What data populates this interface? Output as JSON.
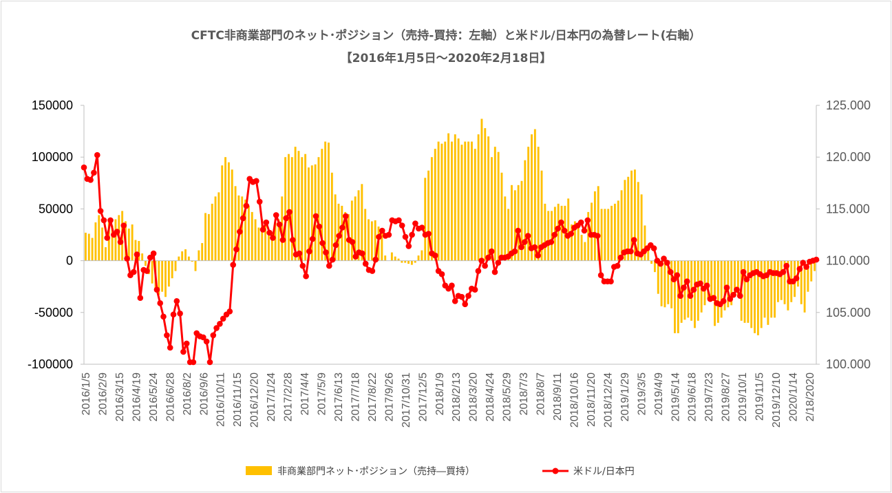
{
  "chart_data": {
    "type": "bar+line",
    "title": "CFTC非商業部門のネット･ポジション（売持-買持：左軸）と米ドル/日本円の為替レート(右軸）",
    "subtitle": "【2016年1月5日～2020年2月18日】",
    "y_left": {
      "min": -100000,
      "max": 150000,
      "ticks": [
        "150000",
        "100000",
        "50000",
        "0",
        "-50000",
        "-100000"
      ]
    },
    "y_right": {
      "min": 100.0,
      "max": 125.0,
      "ticks": [
        "125.000",
        "120.000",
        "115.000",
        "110.000",
        "105.000",
        "100.000"
      ]
    },
    "x_tick_labels": [
      "2016/1/5",
      "2016/2/9",
      "2016/3/15",
      "2016/4/19",
      "2016/5/24",
      "2016/6/28",
      "2016/8/2",
      "2016/9/6",
      "2016/10/11",
      "2016/11/15",
      "2016/12/20",
      "2017/1/24",
      "2017/2/28",
      "2017/4/4",
      "2017/5/9",
      "2017/6/13",
      "2017/7/18",
      "2017/8/22",
      "2017/9/26",
      "2017/10/31",
      "2017/12/5",
      "2018/1/9",
      "2018/2/13",
      "2018/3/20",
      "2018/4/24",
      "2018/5/29",
      "2018/7/3",
      "2018/8/7",
      "2018/9/11",
      "2018/10/16",
      "2018/11/20",
      "2018/12/24",
      "2019/1/29",
      "2019/3/5",
      "2019/4/9",
      "2019/5/14",
      "2019/6/18",
      "2019/7/23",
      "2019/8/27",
      "2019/10/1",
      "2019/11/5",
      "2019/12/10",
      "2020/1/14",
      "2/18/2020"
    ],
    "series": [
      {
        "name": "非商業部門ネット･ポジション（売持―買持）",
        "kind": "bar",
        "axis": "left",
        "color": "#FFC000",
        "values": [
          27000,
          26000,
          22000,
          37000,
          44000,
          32000,
          13000,
          37000,
          34000,
          40000,
          44000,
          48000,
          38000,
          31000,
          35000,
          20000,
          19000,
          7000,
          -5000,
          -13000,
          -22000,
          -27000,
          -33000,
          -30000,
          -35000,
          -25000,
          -17000,
          -10000,
          4000,
          9000,
          11000,
          4000,
          -1000,
          -10000,
          10000,
          17000,
          46000,
          45000,
          55000,
          62000,
          66000,
          92000,
          100000,
          95000,
          88000,
          72000,
          63000,
          62000,
          59000,
          53000,
          47000,
          40000,
          32000,
          40000,
          38000,
          30000,
          27000,
          37000,
          40000,
          62000,
          100000,
          103000,
          100000,
          110000,
          106000,
          100000,
          103000,
          90000,
          92000,
          93000,
          100000,
          108000,
          115000,
          114000,
          85000,
          64000,
          55000,
          53000,
          47000,
          45000,
          58000,
          62000,
          68000,
          74000,
          50000,
          40000,
          38000,
          39000,
          33000,
          30000,
          5000,
          0,
          8000,
          4000,
          2000,
          -2000,
          -2000,
          -3000,
          -4000,
          -2000,
          5000,
          10000,
          80000,
          87000,
          100000,
          108000,
          115000,
          113000,
          115000,
          123000,
          115000,
          122000,
          118000,
          112000,
          115000,
          115000,
          115000,
          108000,
          122000,
          137000,
          128000,
          120000,
          100000,
          110000,
          105000,
          85000,
          62000,
          50000,
          73000,
          68000,
          73000,
          77000,
          97000,
          110000,
          122000,
          127000,
          110000,
          87000,
          55000,
          48000,
          48000,
          52000,
          55000,
          53000,
          53000,
          60000,
          35000,
          38000,
          32000,
          25000,
          18000,
          47000,
          56000,
          67000,
          72000,
          50000,
          50000,
          50000,
          53000,
          55000,
          58000,
          68000,
          78000,
          81000,
          87000,
          88000,
          76000,
          64000,
          34000,
          10000,
          -3000,
          -11000,
          -32000,
          -44000,
          -45000,
          -42000,
          -46000,
          -70000,
          -70000,
          -60000,
          -57000,
          -55000,
          -58000,
          -65000,
          -58000,
          -50000,
          -43000,
          -37000,
          -38000,
          -63000,
          -60000,
          -55000,
          -48000,
          -45000,
          -43000,
          -30000,
          -35000,
          -58000,
          -60000,
          -60000,
          -65000,
          -70000,
          -72000,
          -65000,
          -55000,
          -62000,
          -55000,
          -55000,
          -40000,
          -38000,
          -42000,
          -48000,
          -40000,
          -35000,
          -25000,
          -42000,
          -50000,
          -30000,
          -20000,
          -10000
        ]
      },
      {
        "name": "米ドル/日本円",
        "kind": "line",
        "axis": "right",
        "color": "#FF0000",
        "values": [
          119.0,
          117.9,
          117.8,
          118.5,
          120.2,
          114.8,
          113.9,
          112.2,
          113.9,
          112.5,
          112.8,
          111.8,
          113.4,
          110.2,
          108.6,
          108.9,
          110.6,
          106.4,
          109.1,
          109.0,
          110.3,
          110.7,
          107.2,
          105.9,
          104.6,
          102.8,
          101.6,
          104.8,
          106.1,
          104.9,
          101.2,
          102.0,
          100.2,
          100.2,
          103.0,
          102.7,
          102.6,
          102.2,
          100.2,
          102.8,
          103.5,
          103.9,
          104.4,
          104.8,
          105.1,
          109.6,
          111.1,
          112.8,
          114.1,
          115.3,
          117.9,
          117.6,
          117.7,
          115.7,
          113.0,
          113.7,
          112.7,
          112.2,
          114.4,
          113.5,
          112.0,
          114.1,
          114.7,
          112.0,
          110.6,
          110.7,
          109.5,
          108.5,
          110.9,
          112.1,
          114.3,
          113.3,
          111.7,
          110.8,
          109.5,
          110.1,
          111.5,
          112.4,
          113.2,
          114.3,
          112.0,
          111.8,
          110.4,
          110.8,
          110.7,
          109.7,
          109.1,
          109.0,
          110.1,
          112.3,
          112.9,
          112.4,
          112.5,
          113.9,
          113.8,
          113.9,
          113.4,
          112.3,
          111.4,
          112.5,
          113.6,
          113.1,
          113.2,
          112.5,
          112.6,
          110.7,
          110.5,
          109.0,
          108.7,
          107.6,
          107.3,
          107.6,
          106.1,
          106.6,
          106.5,
          105.8,
          106.6,
          107.3,
          107.2,
          109.0,
          110.0,
          109.5,
          110.3,
          110.9,
          108.9,
          109.8,
          110.3,
          110.3,
          110.4,
          110.7,
          110.9,
          112.9,
          111.3,
          111.8,
          112.4,
          111.2,
          111.3,
          110.5,
          111.3,
          111.5,
          111.7,
          111.8,
          112.5,
          113.1,
          113.7,
          112.9,
          112.4,
          112.6,
          113.2,
          113.4,
          113.7,
          112.9,
          113.9,
          112.5,
          112.5,
          112.4,
          108.6,
          108.0,
          108.0,
          108.0,
          109.4,
          109.5,
          110.3,
          110.8,
          110.9,
          110.9,
          112.0,
          110.7,
          110.6,
          110.9,
          111.2,
          111.5,
          111.2,
          110.0,
          109.7,
          110.2,
          109.8,
          108.9,
          108.2,
          108.6,
          106.6,
          107.4,
          108.0,
          106.6,
          107.2,
          107.7,
          107.8,
          107.3,
          107.6,
          106.3,
          106.4,
          105.9,
          105.8,
          106.1,
          107.4,
          106.3,
          106.7,
          107.2,
          106.6,
          108.9,
          108.2,
          108.6,
          108.8,
          108.9,
          108.7,
          108.5,
          108.6,
          108.9,
          108.8,
          108.8,
          108.7,
          108.9,
          109.5,
          108.0,
          108.0,
          108.3,
          109.2,
          109.8,
          109.4,
          109.9,
          110.0,
          110.1
        ]
      }
    ],
    "legend": {
      "position": "bottom"
    }
  }
}
